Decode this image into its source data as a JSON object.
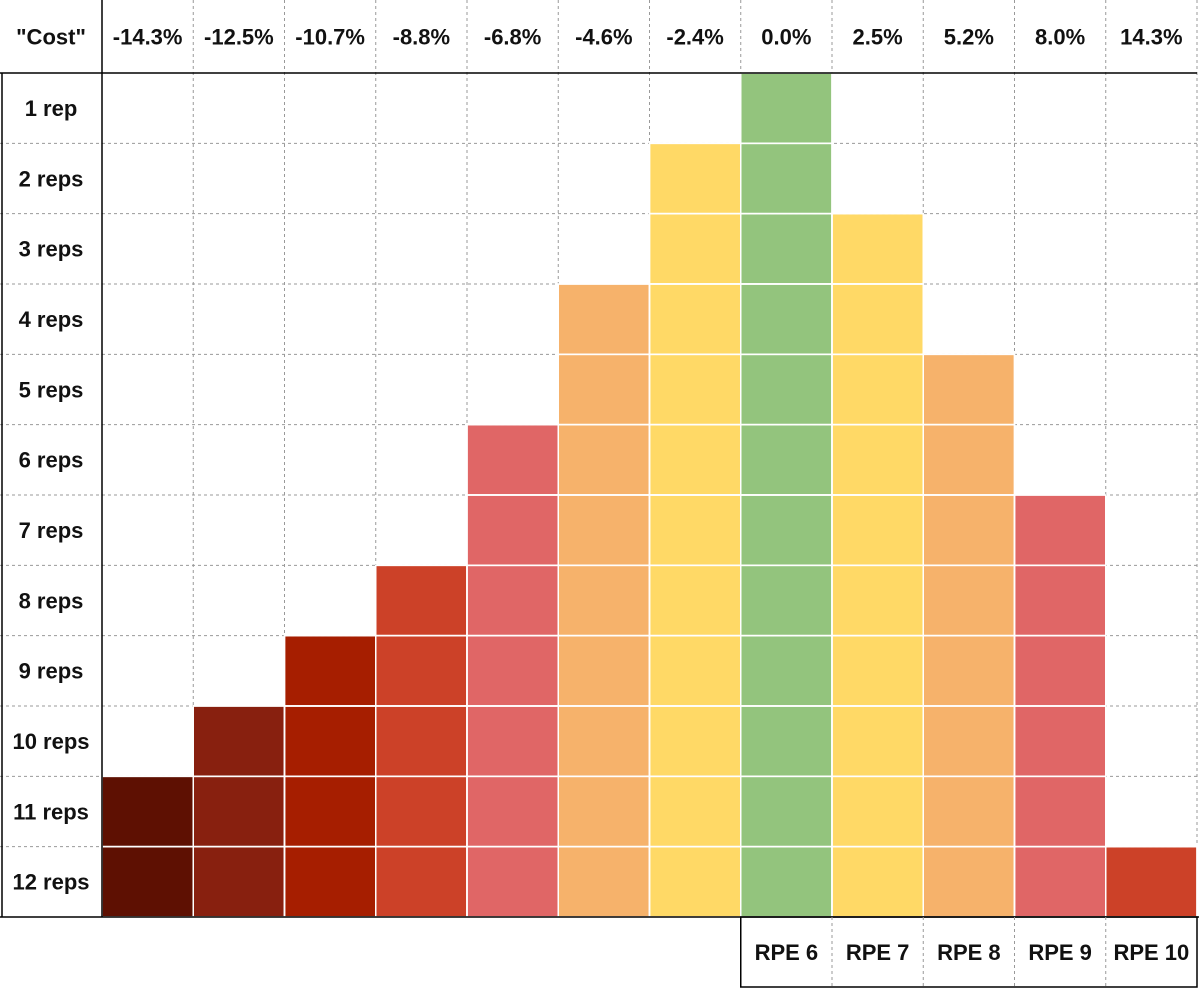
{
  "table": {
    "corner": "\"Cost\"",
    "columns": [
      {
        "label": "-14.3%",
        "color": "#5e1002"
      },
      {
        "label": "-12.5%",
        "color": "#88200f"
      },
      {
        "label": "-10.7%",
        "color": "#a61e00"
      },
      {
        "label": "-8.8%",
        "color": "#cc4128"
      },
      {
        "label": "-6.8%",
        "color": "#e06666"
      },
      {
        "label": "-4.6%",
        "color": "#f6b26b"
      },
      {
        "label": "-2.4%",
        "color": "#ffd966"
      },
      {
        "label": "0.0%",
        "color": "#93c47d"
      },
      {
        "label": "2.5%",
        "color": "#ffd966"
      },
      {
        "label": "5.2%",
        "color": "#f6b26b"
      },
      {
        "label": "8.0%",
        "color": "#e06666"
      },
      {
        "label": "14.3%",
        "color": "#cc4128"
      }
    ],
    "rows": [
      {
        "label": "1 rep",
        "filled": [
          false,
          false,
          false,
          false,
          false,
          false,
          false,
          true,
          false,
          false,
          false,
          false
        ]
      },
      {
        "label": "2 reps",
        "filled": [
          false,
          false,
          false,
          false,
          false,
          false,
          true,
          true,
          false,
          false,
          false,
          false
        ]
      },
      {
        "label": "3 reps",
        "filled": [
          false,
          false,
          false,
          false,
          false,
          false,
          true,
          true,
          true,
          false,
          false,
          false
        ]
      },
      {
        "label": "4 reps",
        "filled": [
          false,
          false,
          false,
          false,
          false,
          true,
          true,
          true,
          true,
          false,
          false,
          false
        ]
      },
      {
        "label": "5 reps",
        "filled": [
          false,
          false,
          false,
          false,
          false,
          true,
          true,
          true,
          true,
          true,
          false,
          false
        ]
      },
      {
        "label": "6 reps",
        "filled": [
          false,
          false,
          false,
          false,
          true,
          true,
          true,
          true,
          true,
          true,
          false,
          false
        ]
      },
      {
        "label": "7 reps",
        "filled": [
          false,
          false,
          false,
          false,
          true,
          true,
          true,
          true,
          true,
          true,
          true,
          false
        ]
      },
      {
        "label": "8 reps",
        "filled": [
          false,
          false,
          false,
          true,
          true,
          true,
          true,
          true,
          true,
          true,
          true,
          false
        ]
      },
      {
        "label": "9 reps",
        "filled": [
          false,
          false,
          true,
          true,
          true,
          true,
          true,
          true,
          true,
          true,
          true,
          false
        ]
      },
      {
        "label": "10 reps",
        "filled": [
          false,
          true,
          true,
          true,
          true,
          true,
          true,
          true,
          true,
          true,
          true,
          false
        ]
      },
      {
        "label": "11 reps",
        "filled": [
          true,
          true,
          true,
          true,
          true,
          true,
          true,
          true,
          true,
          true,
          true,
          false
        ]
      },
      {
        "label": "12 reps",
        "filled": [
          true,
          true,
          true,
          true,
          true,
          true,
          true,
          true,
          true,
          true,
          true,
          true
        ]
      }
    ],
    "footer": [
      "RPE 6",
      "RPE 7",
      "RPE 8",
      "RPE 9",
      "RPE 10"
    ]
  }
}
